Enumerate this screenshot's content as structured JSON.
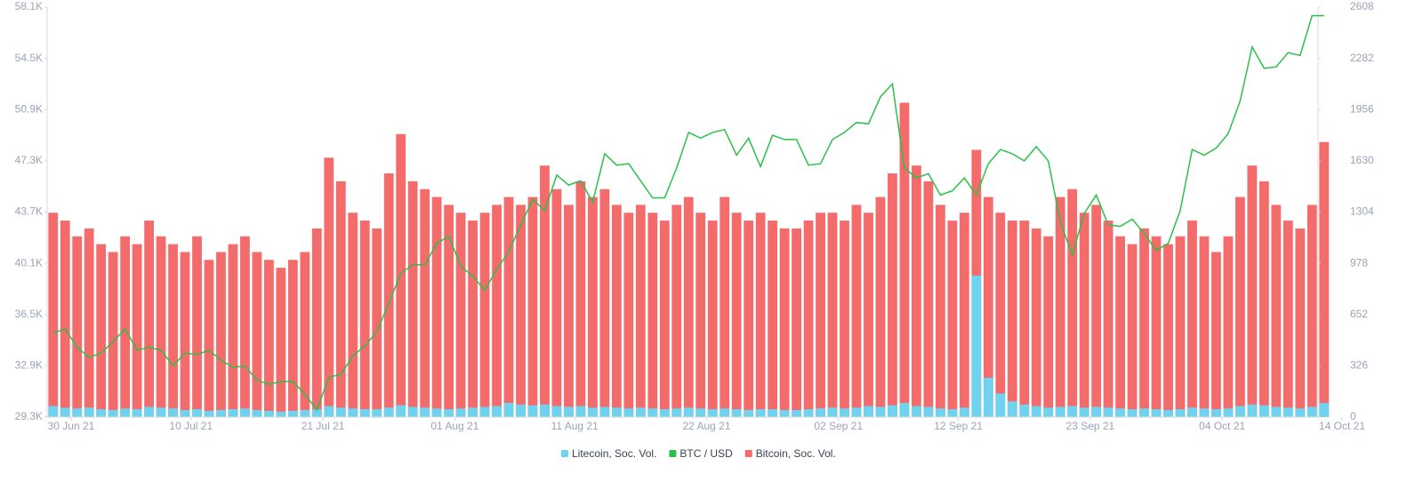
{
  "chart_data": {
    "type": "bar-line",
    "x": [
      "2021-06-28",
      "2021-06-29",
      "2021-06-30",
      "2021-07-01",
      "2021-07-02",
      "2021-07-03",
      "2021-07-04",
      "2021-07-05",
      "2021-07-06",
      "2021-07-07",
      "2021-07-08",
      "2021-07-09",
      "2021-07-10",
      "2021-07-11",
      "2021-07-12",
      "2021-07-13",
      "2021-07-14",
      "2021-07-15",
      "2021-07-16",
      "2021-07-17",
      "2021-07-18",
      "2021-07-19",
      "2021-07-20",
      "2021-07-21",
      "2021-07-22",
      "2021-07-23",
      "2021-07-24",
      "2021-07-25",
      "2021-07-26",
      "2021-07-27",
      "2021-07-28",
      "2021-07-29",
      "2021-07-30",
      "2021-07-31",
      "2021-08-01",
      "2021-08-02",
      "2021-08-03",
      "2021-08-04",
      "2021-08-05",
      "2021-08-06",
      "2021-08-07",
      "2021-08-08",
      "2021-08-09",
      "2021-08-10",
      "2021-08-11",
      "2021-08-12",
      "2021-08-13",
      "2021-08-14",
      "2021-08-15",
      "2021-08-16",
      "2021-08-17",
      "2021-08-18",
      "2021-08-19",
      "2021-08-20",
      "2021-08-21",
      "2021-08-22",
      "2021-08-23",
      "2021-08-24",
      "2021-08-25",
      "2021-08-26",
      "2021-08-27",
      "2021-08-28",
      "2021-08-29",
      "2021-08-30",
      "2021-08-31",
      "2021-09-01",
      "2021-09-02",
      "2021-09-03",
      "2021-09-04",
      "2021-09-05",
      "2021-09-06",
      "2021-09-07",
      "2021-09-08",
      "2021-09-09",
      "2021-09-10",
      "2021-09-11",
      "2021-09-12",
      "2021-09-13",
      "2021-09-14",
      "2021-09-15",
      "2021-09-16",
      "2021-09-17",
      "2021-09-18",
      "2021-09-19",
      "2021-09-20",
      "2021-09-21",
      "2021-09-22",
      "2021-09-23",
      "2021-09-24",
      "2021-09-25",
      "2021-09-26",
      "2021-09-27",
      "2021-09-28",
      "2021-09-29",
      "2021-09-30",
      "2021-10-01",
      "2021-10-02",
      "2021-10-03",
      "2021-10-04",
      "2021-10-05",
      "2021-10-06",
      "2021-10-07",
      "2021-10-08",
      "2021-10-09",
      "2021-10-10",
      "2021-10-11",
      "2021-10-12"
    ],
    "xlim": [
      "2021-06-28",
      "2021-10-14"
    ],
    "xticks": [
      {
        "value": "2021-06-30",
        "label": "30 Jun 21"
      },
      {
        "value": "2021-07-10",
        "label": "10 Jul 21"
      },
      {
        "value": "2021-07-21",
        "label": "21 Jul 21"
      },
      {
        "value": "2021-08-01",
        "label": "01 Aug 21"
      },
      {
        "value": "2021-08-11",
        "label": "11 Aug 21"
      },
      {
        "value": "2021-08-22",
        "label": "22 Aug 21"
      },
      {
        "value": "2021-09-02",
        "label": "02 Sep 21"
      },
      {
        "value": "2021-09-12",
        "label": "12 Sep 21"
      },
      {
        "value": "2021-09-23",
        "label": "23 Sep 21"
      },
      {
        "value": "2021-10-04",
        "label": "04 Oct 21"
      },
      {
        "value": "2021-10-14",
        "label": "14 Oct 21"
      }
    ],
    "ylim": [
      29300,
      58100
    ],
    "yticks": [
      {
        "value": 29300,
        "label": "29.3K"
      },
      {
        "value": 32900,
        "label": "32.9K"
      },
      {
        "value": 36500,
        "label": "36.5K"
      },
      {
        "value": 40100,
        "label": "40.1K"
      },
      {
        "value": 43700,
        "label": "43.7K"
      },
      {
        "value": 47300,
        "label": "47.3K"
      },
      {
        "value": 50900,
        "label": "50.9K"
      },
      {
        "value": 54500,
        "label": "54.5K"
      },
      {
        "value": 58100,
        "label": "58.1K"
      }
    ],
    "y2lim": [
      0,
      2608
    ],
    "y2ticks": [
      0,
      326,
      652,
      978,
      1304,
      1630,
      1956,
      2282,
      2608
    ],
    "series": [
      {
        "name": "Litecoin, Soc. Vol.",
        "color": "#6fd3ef",
        "axis": "y2",
        "kind": "bar",
        "values": [
          70,
          60,
          55,
          60,
          50,
          45,
          55,
          50,
          65,
          60,
          55,
          45,
          50,
          40,
          45,
          50,
          55,
          45,
          40,
          35,
          40,
          45,
          50,
          70,
          60,
          55,
          50,
          50,
          60,
          75,
          65,
          60,
          55,
          50,
          55,
          60,
          65,
          70,
          90,
          80,
          75,
          80,
          70,
          65,
          70,
          60,
          65,
          60,
          55,
          60,
          55,
          50,
          55,
          60,
          55,
          50,
          55,
          50,
          45,
          50,
          50,
          45,
          45,
          50,
          55,
          60,
          55,
          60,
          70,
          65,
          75,
          90,
          70,
          65,
          55,
          50,
          60,
          900,
          250,
          150,
          100,
          80,
          70,
          60,
          65,
          70,
          60,
          65,
          60,
          55,
          50,
          55,
          50,
          45,
          50,
          60,
          55,
          50,
          55,
          70,
          80,
          75,
          65,
          60,
          55,
          65,
          90
        ]
      },
      {
        "name": "BTC / USD",
        "color": "#2cc04b",
        "kind": "line",
        "values": [
          35200,
          35500,
          34200,
          33500,
          33800,
          34600,
          35500,
          34000,
          34200,
          34000,
          32900,
          33800,
          33700,
          34000,
          33300,
          32800,
          32900,
          31900,
          31600,
          31800,
          31800,
          30900,
          29800,
          32100,
          32300,
          33600,
          34300,
          35300,
          37300,
          39400,
          40000,
          40000,
          41500,
          42000,
          39900,
          39200,
          38200,
          39700,
          40900,
          42800,
          44600,
          43800,
          46300,
          45600,
          45900,
          44400,
          47800,
          47000,
          47100,
          45900,
          44700,
          44700,
          46800,
          49300,
          48900,
          49300,
          49500,
          47700,
          48900,
          46900,
          49100,
          48800,
          48800,
          47000,
          47100,
          48800,
          49300,
          50000,
          49900,
          51800,
          52700,
          46800,
          46100,
          46400,
          44900,
          45200,
          46100,
          44900,
          47100,
          48100,
          47800,
          47300,
          48300,
          47300,
          43000,
          40700,
          43600,
          44900,
          42800,
          42700,
          43200,
          42200,
          41000,
          41500,
          43800,
          48100,
          47700,
          48200,
          49200,
          51500,
          55300,
          53800,
          53900,
          54900,
          54700,
          57500,
          57500
        ]
      },
      {
        "name": "Bitcoin, Soc. Vol.",
        "color": "#f46b6b",
        "axis": "y2",
        "kind": "bar",
        "values": [
          1300,
          1250,
          1150,
          1200,
          1100,
          1050,
          1150,
          1100,
          1250,
          1150,
          1100,
          1050,
          1150,
          1000,
          1050,
          1100,
          1150,
          1050,
          1000,
          950,
          1000,
          1050,
          1200,
          1650,
          1500,
          1300,
          1250,
          1200,
          1550,
          1800,
          1500,
          1450,
          1400,
          1350,
          1300,
          1250,
          1300,
          1350,
          1400,
          1350,
          1400,
          1600,
          1450,
          1350,
          1500,
          1400,
          1450,
          1350,
          1300,
          1350,
          1300,
          1250,
          1350,
          1400,
          1300,
          1250,
          1400,
          1300,
          1250,
          1300,
          1250,
          1200,
          1200,
          1250,
          1300,
          1300,
          1250,
          1350,
          1300,
          1400,
          1550,
          2000,
          1600,
          1500,
          1350,
          1250,
          1300,
          1700,
          1400,
          1300,
          1250,
          1250,
          1200,
          1150,
          1400,
          1450,
          1300,
          1350,
          1250,
          1150,
          1100,
          1200,
          1150,
          1100,
          1150,
          1250,
          1150,
          1050,
          1150,
          1400,
          1600,
          1500,
          1350,
          1250,
          1200,
          1350,
          1750
        ]
      }
    ],
    "grid": false
  }
}
